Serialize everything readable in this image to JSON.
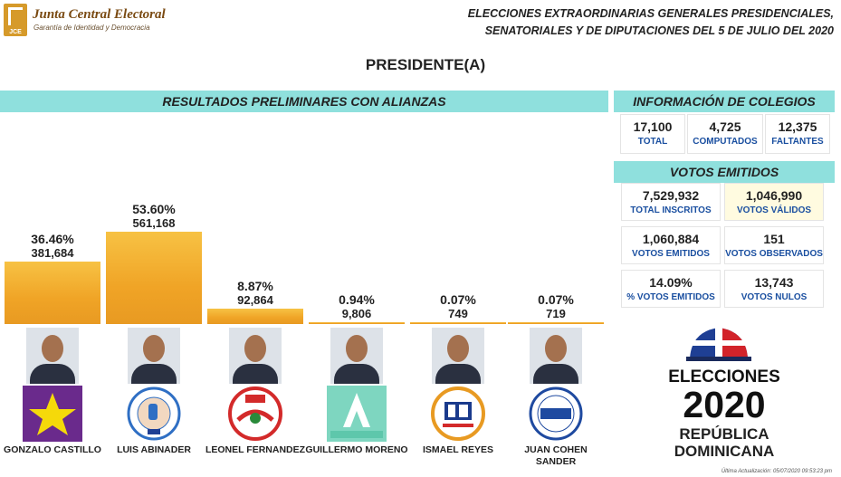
{
  "header": {
    "org_name": "Junta Central Electoral",
    "org_tagline": "Garantía de Identidad y Democracia",
    "logo_text": "JCE",
    "election_title_line1": "ELECCIONES EXTRAORDINARIAS GENERALES PRESIDENCIALES,",
    "election_title_line2": "SENATORIALES Y DE DIPUTACIONES DEL 5 DE JULIO DEL 2020"
  },
  "office_title": "PRESIDENTE(A)",
  "results_header": "RESULTADOS PRELIMINARES CON ALIANZAS",
  "chart_data": {
    "type": "bar",
    "title": "RESULTADOS PRELIMINARES CON ALIANZAS",
    "categories": [
      "GONZALO CASTILLO",
      "LUIS ABINADER",
      "LEONEL FERNANDEZ",
      "GUILLERMO MORENO",
      "ISMAEL REYES",
      "JUAN COHEN SANDER"
    ],
    "values": [
      381684,
      561168,
      92864,
      9806,
      749,
      719
    ],
    "percentages": [
      "36.46%",
      "53.60%",
      "8.87%",
      "0.94%",
      "0.07%",
      "0.07%"
    ],
    "vote_labels": [
      "381,684",
      "561,168",
      "92,864",
      "9,806",
      "749",
      "719"
    ],
    "bar_color": "#f0a426",
    "grid": false,
    "legend": "none"
  },
  "candidates": [
    {
      "name": "GONZALO CASTILLO",
      "party": "PLD",
      "party_color": "#6a2a8c"
    },
    {
      "name": "LUIS ABINADER",
      "party": "PRM",
      "party_color": "#2f6fc4"
    },
    {
      "name": "LEONEL FERNANDEZ",
      "party": "PRSC",
      "party_color": "#d32a2a"
    },
    {
      "name": "GUILLERMO MORENO",
      "party": "Alianza País",
      "party_color": "#7ed6c0"
    },
    {
      "name": "ISMAEL REYES",
      "party": "PDI",
      "party_color": "#1a3a8c"
    },
    {
      "name": "JUAN COHEN SANDER",
      "party": "PNVC",
      "party_color": "#1f4aa0"
    }
  ],
  "colegios": {
    "header": "INFORMACIÓN DE COLEGIOS",
    "total_value": "17,100",
    "total_label": "TOTAL",
    "computados_value": "4,725",
    "computados_label": "COMPUTADOS",
    "faltantes_value": "12,375",
    "faltantes_label": "FALTANTES"
  },
  "votos": {
    "header": "VOTOS EMITIDOS",
    "inscritos_value": "7,529,932",
    "inscritos_label": "TOTAL INSCRITOS",
    "validos_value": "1,046,990",
    "validos_label": "VOTOS VÁLIDOS",
    "emitidos_value": "1,060,884",
    "emitidos_label": "VOTOS EMITIDOS",
    "observados_value": "151",
    "observados_label": "VOTOS OBSERVADOS",
    "pct_value": "14.09%",
    "pct_label": "% VOTOS EMITIDOS",
    "nulos_value": "13,743",
    "nulos_label": "VOTOS NULOS"
  },
  "branding": {
    "line1": "ELECCIONES",
    "line2": "2020",
    "line3": "REPÚBLICA",
    "line4": "DOMINICANA"
  },
  "last_update": "Última Actualización: 05/07/2020 09:53:23 pm",
  "colors": {
    "accent_cyan": "#8fe0dd",
    "bar_orange": "#f0a426",
    "stat_blue": "#1a4fa0",
    "brand_brown": "#7a4a12"
  }
}
